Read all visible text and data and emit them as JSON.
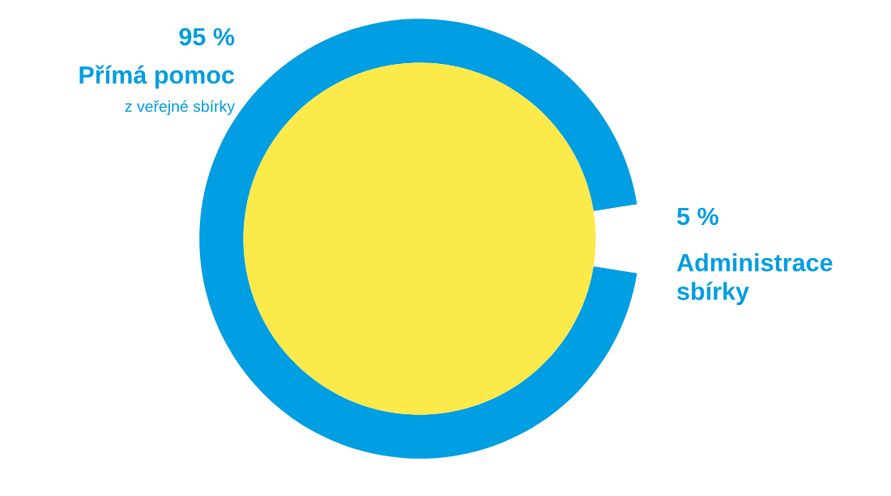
{
  "chart_data": {
    "type": "donut",
    "categories": [
      "Přímá pomoc",
      "Administrace sbírky"
    ],
    "values": [
      95,
      5
    ],
    "colors": [
      "#009ee2",
      "#ffffff"
    ],
    "value_labels": [
      "95 %",
      "5 %"
    ],
    "annotations": [
      "z veřejné sbírky"
    ],
    "legend": false
  }
}
